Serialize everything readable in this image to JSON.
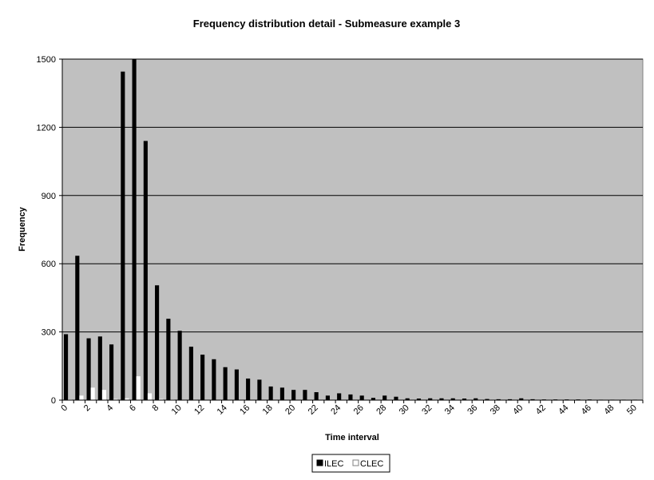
{
  "chart_data": {
    "type": "bar",
    "title": "Frequency distribution detail - Submeasure example 3",
    "xlabel": "Time interval",
    "ylabel": "Frequency",
    "ylim": [
      0,
      1500
    ],
    "yticks": [
      "0",
      "300",
      "600",
      "900",
      "1200",
      "1500"
    ],
    "x": [
      0,
      1,
      2,
      3,
      4,
      5,
      6,
      7,
      8,
      9,
      10,
      11,
      12,
      13,
      14,
      15,
      16,
      17,
      18,
      19,
      20,
      21,
      22,
      23,
      24,
      25,
      26,
      27,
      28,
      29,
      30,
      31,
      32,
      33,
      34,
      35,
      36,
      37,
      38,
      39,
      40,
      41,
      42,
      43,
      44,
      45,
      46,
      47,
      48,
      49,
      50
    ],
    "x_tick_labels": [
      "0",
      "2",
      "4",
      "6",
      "8",
      "10",
      "12",
      "14",
      "16",
      "18",
      "20",
      "22",
      "24",
      "26",
      "28",
      "30",
      "32",
      "34",
      "36",
      "38",
      "40",
      "42",
      "44",
      "46",
      "48",
      "50"
    ],
    "grid": true,
    "legend_position": "bottom-center",
    "plot_background": "#c0c0c0",
    "series": [
      {
        "name": "ILEC",
        "color": "#000000",
        "values": [
          290,
          635,
          272,
          280,
          245,
          1445,
          1500,
          1140,
          505,
          358,
          305,
          235,
          200,
          180,
          145,
          135,
          95,
          90,
          60,
          55,
          45,
          45,
          35,
          20,
          30,
          25,
          20,
          10,
          20,
          15,
          8,
          7,
          8,
          8,
          8,
          7,
          8,
          5,
          4,
          4,
          8,
          4,
          3,
          3,
          3,
          3,
          3,
          2,
          2,
          2,
          2
        ]
      },
      {
        "name": "CLEC",
        "color": "#ffffff",
        "values": [
          3,
          20,
          55,
          45,
          5,
          8,
          105,
          30,
          5,
          3,
          2,
          2,
          1,
          1,
          1,
          1,
          1,
          1,
          1,
          1,
          1,
          1,
          1,
          1,
          1,
          1,
          1,
          1,
          1,
          1,
          1,
          1,
          1,
          1,
          1,
          1,
          1,
          1,
          1,
          1,
          1,
          1,
          1,
          1,
          1,
          1,
          1,
          1,
          1,
          1,
          1
        ]
      }
    ]
  }
}
